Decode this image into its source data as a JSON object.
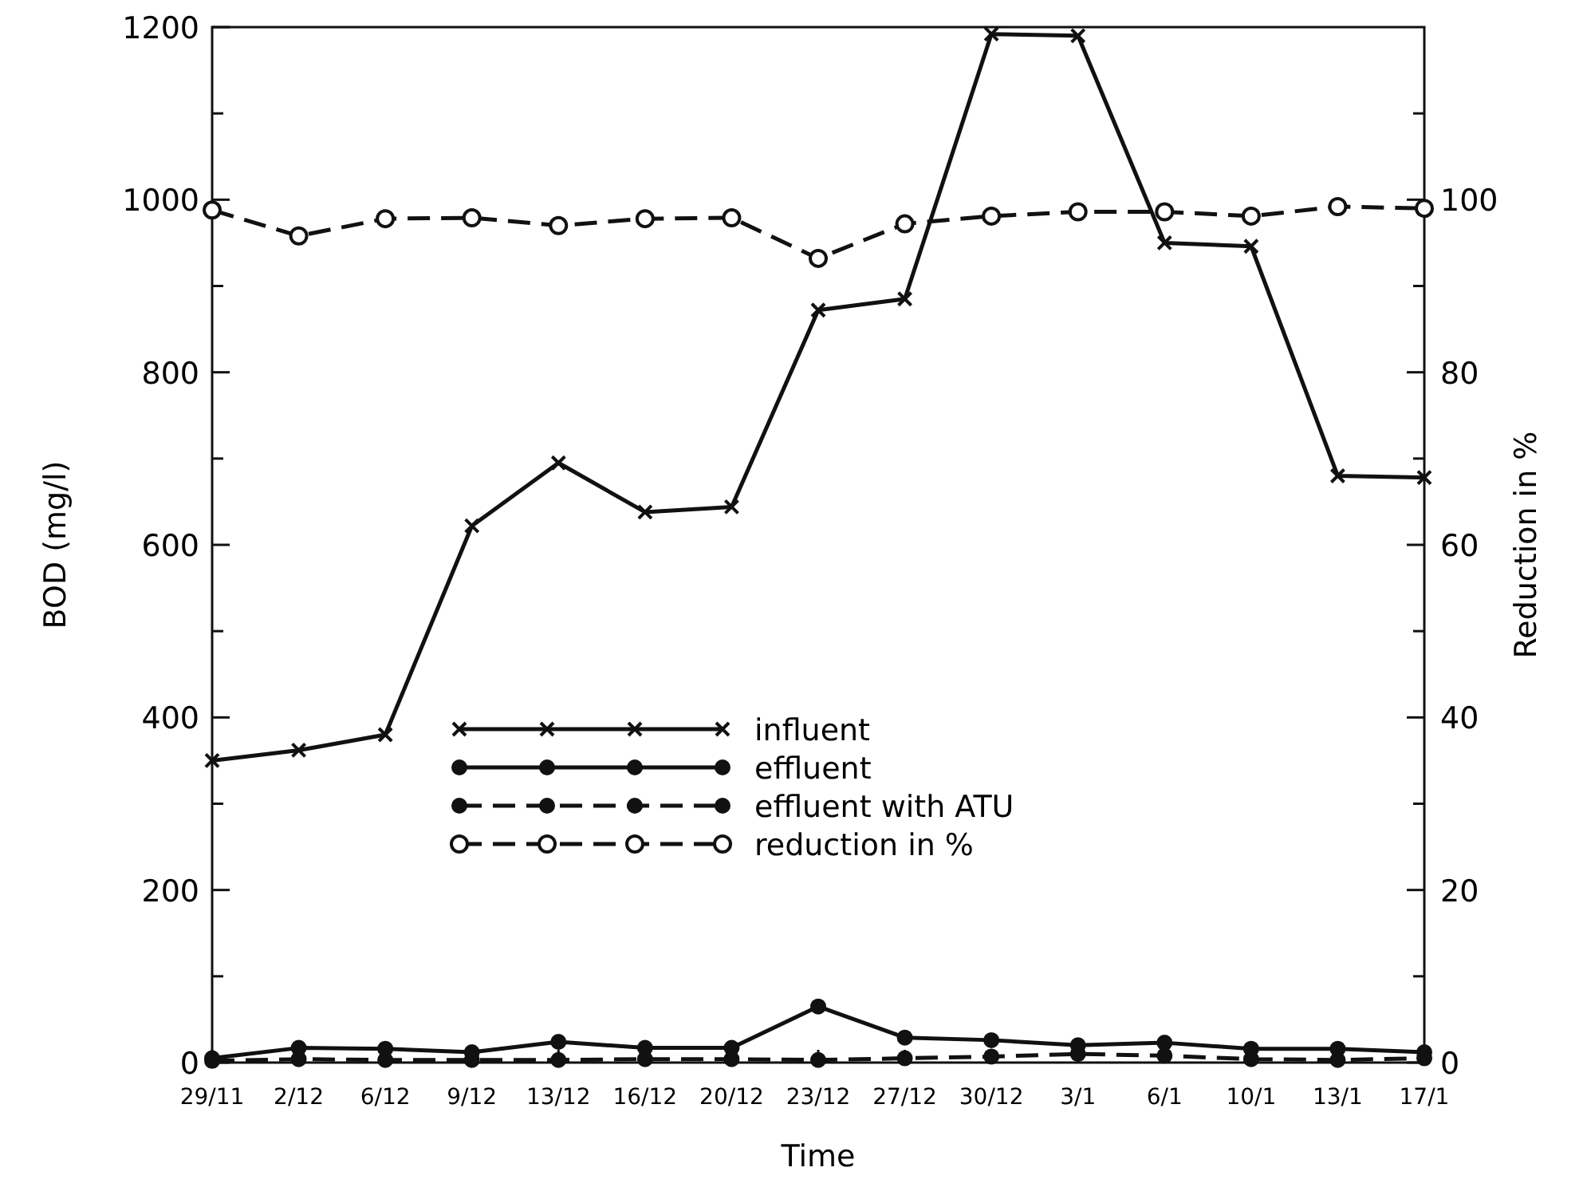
{
  "chart_data": {
    "type": "line",
    "xlabel": "Time",
    "ylabel": "BOD (mg/l)",
    "y2label": "Reduction in %",
    "categories": [
      "29/11",
      "2/12",
      "6/12",
      "9/12",
      "13/12",
      "16/12",
      "20/12",
      "23/12",
      "27/12",
      "30/12",
      "3/1",
      "6/1",
      "10/1",
      "13/1",
      "17/1"
    ],
    "series": [
      {
        "name": "influent",
        "color": "#111111",
        "marker": "cross",
        "line_style": "solid",
        "values": [
          350,
          362,
          380,
          622,
          695,
          638,
          644,
          872,
          885,
          1192,
          1190,
          950,
          946,
          680,
          678
        ]
      },
      {
        "name": "effluent",
        "color": "#111111",
        "marker": "circle",
        "line_style": "solid",
        "values": [
          5,
          17,
          16,
          12,
          24,
          17,
          17,
          65,
          29,
          26,
          20,
          23,
          16,
          16,
          12
        ]
      },
      {
        "name": "effluent with ATU",
        "color": "#111111",
        "marker": "circle",
        "line_style": "dashed",
        "values": [
          2,
          4,
          3,
          3,
          3,
          4,
          4,
          3,
          5,
          7,
          10,
          8,
          4,
          3,
          5
        ]
      },
      {
        "name": "reduction in %",
        "color": "#111111",
        "marker": "open-circle",
        "line_style": "dashed",
        "axis": "y2",
        "values": [
          98.8,
          95.8,
          97.8,
          97.9,
          97,
          97.8,
          97.9,
          93.2,
          97.2,
          98.1,
          98.6,
          98.6,
          98.1,
          99.2,
          99
        ]
      }
    ],
    "ylim": [
      0,
      1200
    ],
    "yticks": [
      0,
      {
        "value": 100,
        "label": null
      },
      200,
      {
        "value": 300,
        "label": null
      },
      400,
      {
        "value": 500,
        "label": null
      },
      600,
      {
        "value": 700,
        "label": null
      },
      800,
      {
        "value": 900,
        "label": null
      },
      1000,
      {
        "value": 1100,
        "label": null
      },
      1200
    ],
    "y2lim": [
      0,
      120
    ],
    "y2ticks": [
      0,
      {
        "value": 10,
        "label": null
      },
      20,
      {
        "value": 30,
        "label": null
      },
      40,
      {
        "value": 50,
        "label": null
      },
      60,
      {
        "value": 70,
        "label": null
      },
      80,
      {
        "value": 90,
        "label": null
      },
      100,
      {
        "value": 110,
        "label": null
      }
    ],
    "legend": "center",
    "grid": false
  }
}
